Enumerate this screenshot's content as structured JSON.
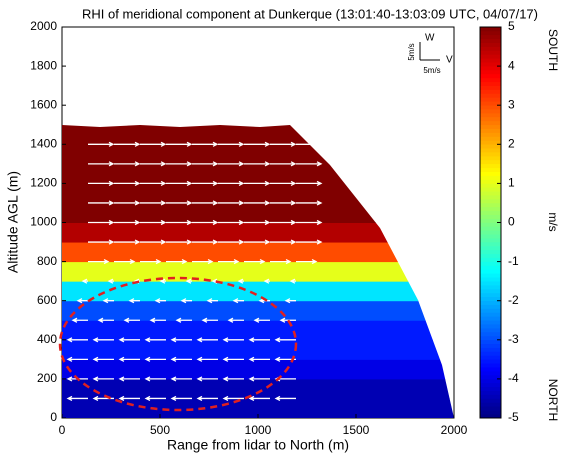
{
  "chart_data": {
    "type": "rhi",
    "title": "RHI of meridional component at Dunkerque (13:01:40-13:03:09 UTC, 04/07/17)",
    "x_label": "Range from lidar to North (m)",
    "y_label": "Altitude AGL (m)",
    "xlim": [
      0,
      2000
    ],
    "xticks": [
      0,
      500,
      1000,
      1500,
      2000
    ],
    "ylim": [
      0,
      2000
    ],
    "yticks": [
      0,
      200,
      400,
      600,
      800,
      1000,
      1200,
      1400,
      1600,
      1800,
      2000
    ],
    "layers": {
      "bottoms": [
        0,
        100,
        200,
        300,
        400,
        500,
        600,
        700,
        800,
        900,
        1000
      ],
      "tops": [
        100,
        200,
        300,
        400,
        500,
        600,
        700,
        800,
        900,
        1000,
        1500
      ],
      "values": [
        -4.5,
        -4.5,
        -4,
        -3.5,
        -3.5,
        -3,
        -1.5,
        1,
        3,
        4.5,
        5
      ]
    },
    "vectors": {
      "altitudes": [
        100,
        200,
        300,
        400,
        500,
        600,
        700,
        800,
        900,
        1000,
        1100,
        1200,
        1300,
        1400
      ],
      "u": [
        -4,
        -4,
        -4,
        -4,
        -3,
        -2,
        -1,
        4,
        5,
        5,
        5,
        5,
        5,
        5
      ]
    },
    "vector_legend": {
      "w_label": "W",
      "v_label": "V",
      "w_scale": "5m/s",
      "v_scale": "5m/s"
    },
    "colorbar": {
      "clim": [
        -5,
        5
      ],
      "ticks": [
        5,
        4,
        3,
        2,
        1,
        0,
        -1,
        -2,
        -3,
        -4,
        -5
      ],
      "unit": "m/s",
      "top_label": "SOUTH",
      "bottom_label": "NORTH"
    }
  }
}
